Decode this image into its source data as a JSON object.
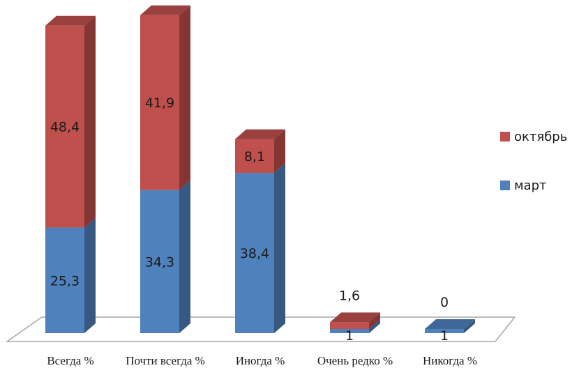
{
  "chart_data": {
    "type": "bar",
    "stacked": true,
    "style": "3d",
    "categories": [
      "Всегда %",
      "Почти всегда %",
      "Иногда %",
      "Очень редко %",
      "Никогда %"
    ],
    "series": [
      {
        "name": "март",
        "values": [
          25.3,
          34.3,
          38.4,
          1,
          1
        ],
        "labels": [
          "25,3",
          "34,3",
          "38,4",
          "1",
          "1"
        ],
        "color": "#4F81BD"
      },
      {
        "name": "октябрь",
        "values": [
          48.4,
          41.9,
          8.1,
          1.6,
          0
        ],
        "labels": [
          "48,4",
          "41,9",
          "8,1",
          "1,6",
          "0"
        ],
        "color": "#C0504D"
      }
    ],
    "title": "",
    "xlabel": "",
    "ylabel": "",
    "ylim": [
      0,
      76
    ],
    "grid": false,
    "legend": "right"
  }
}
